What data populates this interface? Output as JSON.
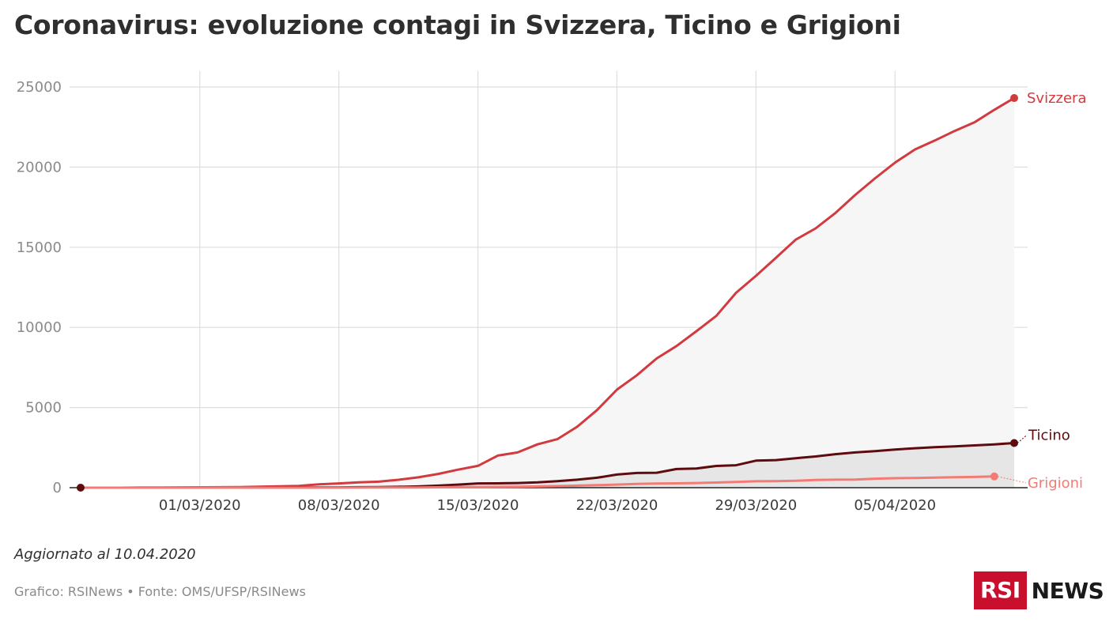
{
  "title": "Coronavirus: evoluzione contagi in Svizzera, Ticino e Grigioni",
  "footer": {
    "note": "Aggiornato al 10.04.2020",
    "source": "Grafico: RSINews • Fonte: OMS/UFSP/RSINews",
    "logo_box": "RSI",
    "logo_text": "NEWS"
  },
  "colors": {
    "svizzera": "#d13a3f",
    "ticino": "#5e0b0f",
    "grigioni": "#f47a75",
    "grid": "#dedede",
    "logo": "#c8102e"
  },
  "chart_data": {
    "type": "area",
    "title": "Coronavirus: evoluzione contagi in Svizzera, Ticino e Grigioni",
    "xlabel": "",
    "ylabel": "",
    "ylim": [
      0,
      25000
    ],
    "yticks": [
      "0",
      "5000",
      "10000",
      "15000",
      "20000",
      "25000"
    ],
    "xlim": [
      "2020-02-24",
      "2020-04-10"
    ],
    "xticks": [
      {
        "date": "2020-03-01",
        "label": "01/03/2020"
      },
      {
        "date": "2020-03-08",
        "label": "08/03/2020"
      },
      {
        "date": "2020-03-15",
        "label": "15/03/2020"
      },
      {
        "date": "2020-03-22",
        "label": "22/03/2020"
      },
      {
        "date": "2020-03-29",
        "label": "29/03/2020"
      },
      {
        "date": "2020-04-05",
        "label": "05/04/2020"
      }
    ],
    "grid": true,
    "series": [
      {
        "name": "Svizzera",
        "color": "#d13a3f",
        "points": [
          [
            "2020-02-24",
            0
          ],
          [
            "2020-02-25",
            1
          ],
          [
            "2020-02-26",
            1
          ],
          [
            "2020-02-27",
            8
          ],
          [
            "2020-02-28",
            15
          ],
          [
            "2020-02-29",
            18
          ],
          [
            "2020-03-01",
            24
          ],
          [
            "2020-03-02",
            30
          ],
          [
            "2020-03-03",
            37
          ],
          [
            "2020-03-04",
            58
          ],
          [
            "2020-03-05",
            90
          ],
          [
            "2020-03-06",
            114
          ],
          [
            "2020-03-07",
            214
          ],
          [
            "2020-03-08",
            268
          ],
          [
            "2020-03-09",
            337
          ],
          [
            "2020-03-10",
            374
          ],
          [
            "2020-03-11",
            491
          ],
          [
            "2020-03-12",
            645
          ],
          [
            "2020-03-13",
            858
          ],
          [
            "2020-03-14",
            1125
          ],
          [
            "2020-03-15",
            1359
          ],
          [
            "2020-03-16",
            2000
          ],
          [
            "2020-03-17",
            2200
          ],
          [
            "2020-03-18",
            2700
          ],
          [
            "2020-03-19",
            3028
          ],
          [
            "2020-03-20",
            3800
          ],
          [
            "2020-03-21",
            4840
          ],
          [
            "2020-03-22",
            6113
          ],
          [
            "2020-03-23",
            7014
          ],
          [
            "2020-03-24",
            8060
          ],
          [
            "2020-03-25",
            8836
          ],
          [
            "2020-03-26",
            9765
          ],
          [
            "2020-03-27",
            10714
          ],
          [
            "2020-03-28",
            12161
          ],
          [
            "2020-03-29",
            13213
          ],
          [
            "2020-03-30",
            14336
          ],
          [
            "2020-03-31",
            15475
          ],
          [
            "2020-04-01",
            16176
          ],
          [
            "2020-04-02",
            17139
          ],
          [
            "2020-04-03",
            18267
          ],
          [
            "2020-04-04",
            19303
          ],
          [
            "2020-04-05",
            20278
          ],
          [
            "2020-04-06",
            21100
          ],
          [
            "2020-04-07",
            21657
          ],
          [
            "2020-04-08",
            22253
          ],
          [
            "2020-04-09",
            22789
          ],
          [
            "2020-04-10",
            23574
          ],
          [
            "2020-04-11",
            24308
          ]
        ]
      },
      {
        "name": "Ticino",
        "color": "#5e0b0f",
        "points": [
          [
            "2020-02-24",
            0
          ],
          [
            "2020-02-25",
            1
          ],
          [
            "2020-02-26",
            1
          ],
          [
            "2020-02-27",
            1
          ],
          [
            "2020-02-28",
            1
          ],
          [
            "2020-02-29",
            1
          ],
          [
            "2020-03-01",
            1
          ],
          [
            "2020-03-02",
            1
          ],
          [
            "2020-03-03",
            2
          ],
          [
            "2020-03-04",
            4
          ],
          [
            "2020-03-05",
            10
          ],
          [
            "2020-03-06",
            15
          ],
          [
            "2020-03-07",
            19
          ],
          [
            "2020-03-08",
            22
          ],
          [
            "2020-03-09",
            30
          ],
          [
            "2020-03-10",
            41
          ],
          [
            "2020-03-11",
            55
          ],
          [
            "2020-03-12",
            80
          ],
          [
            "2020-03-13",
            130
          ],
          [
            "2020-03-14",
            190
          ],
          [
            "2020-03-15",
            265
          ],
          [
            "2020-03-16",
            270
          ],
          [
            "2020-03-17",
            290
          ],
          [
            "2020-03-18",
            330
          ],
          [
            "2020-03-19",
            410
          ],
          [
            "2020-03-20",
            500
          ],
          [
            "2020-03-21",
            620
          ],
          [
            "2020-03-22",
            820
          ],
          [
            "2020-03-23",
            918
          ],
          [
            "2020-03-24",
            930
          ],
          [
            "2020-03-25",
            1165
          ],
          [
            "2020-03-26",
            1200
          ],
          [
            "2020-03-27",
            1354
          ],
          [
            "2020-03-28",
            1401
          ],
          [
            "2020-03-29",
            1688
          ],
          [
            "2020-03-30",
            1720
          ],
          [
            "2020-03-31",
            1837
          ],
          [
            "2020-04-01",
            1950
          ],
          [
            "2020-04-02",
            2090
          ],
          [
            "2020-04-03",
            2200
          ],
          [
            "2020-04-04",
            2280
          ],
          [
            "2020-04-05",
            2380
          ],
          [
            "2020-04-06",
            2460
          ],
          [
            "2020-04-07",
            2530
          ],
          [
            "2020-04-08",
            2580
          ],
          [
            "2020-04-09",
            2640
          ],
          [
            "2020-04-10",
            2700
          ],
          [
            "2020-04-11",
            2785
          ]
        ]
      },
      {
        "name": "Grigioni",
        "color": "#f47a75",
        "points": [
          [
            "2020-02-24",
            0
          ],
          [
            "2020-02-25",
            0
          ],
          [
            "2020-02-26",
            0
          ],
          [
            "2020-02-27",
            0
          ],
          [
            "2020-02-28",
            0
          ],
          [
            "2020-02-29",
            0
          ],
          [
            "2020-03-01",
            0
          ],
          [
            "2020-03-02",
            0
          ],
          [
            "2020-03-03",
            0
          ],
          [
            "2020-03-04",
            0
          ],
          [
            "2020-03-05",
            1
          ],
          [
            "2020-03-06",
            2
          ],
          [
            "2020-03-07",
            3
          ],
          [
            "2020-03-08",
            4
          ],
          [
            "2020-03-09",
            6
          ],
          [
            "2020-03-10",
            8
          ],
          [
            "2020-03-11",
            12
          ],
          [
            "2020-03-12",
            17
          ],
          [
            "2020-03-13",
            24
          ],
          [
            "2020-03-14",
            33
          ],
          [
            "2020-03-15",
            45
          ],
          [
            "2020-03-16",
            52
          ],
          [
            "2020-03-17",
            63
          ],
          [
            "2020-03-18",
            80
          ],
          [
            "2020-03-19",
            100
          ],
          [
            "2020-03-20",
            130
          ],
          [
            "2020-03-21",
            160
          ],
          [
            "2020-03-22",
            190
          ],
          [
            "2020-03-23",
            230
          ],
          [
            "2020-03-24",
            260
          ],
          [
            "2020-03-25",
            270
          ],
          [
            "2020-03-26",
            290
          ],
          [
            "2020-03-27",
            320
          ],
          [
            "2020-03-28",
            360
          ],
          [
            "2020-03-29",
            400
          ],
          [
            "2020-03-30",
            410
          ],
          [
            "2020-03-31",
            430
          ],
          [
            "2020-04-01",
            480
          ],
          [
            "2020-04-02",
            500
          ],
          [
            "2020-04-03",
            510
          ],
          [
            "2020-04-04",
            560
          ],
          [
            "2020-04-05",
            590
          ],
          [
            "2020-04-06",
            600
          ],
          [
            "2020-04-07",
            630
          ],
          [
            "2020-04-08",
            650
          ],
          [
            "2020-04-09",
            670
          ],
          [
            "2020-04-10",
            700
          ]
        ]
      }
    ]
  }
}
